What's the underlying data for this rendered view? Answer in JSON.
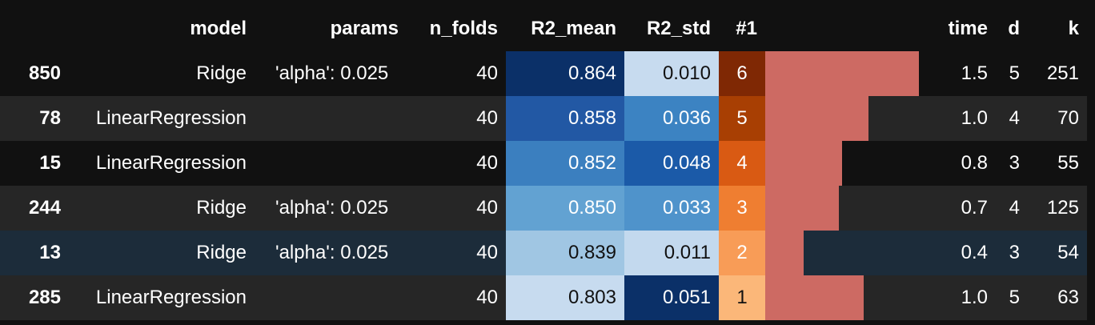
{
  "columns": {
    "index": "",
    "model": "model",
    "params": "params",
    "n_folds": "n_folds",
    "r2_mean": "R2_mean",
    "r2_std": "R2_std",
    "rank": "#1",
    "bar": "",
    "time": "time",
    "d": "d",
    "k": "k"
  },
  "colors": {
    "bar": "#cd6a63",
    "hover_row": "#1c2c3a"
  },
  "rows": [
    {
      "index": "850",
      "model": "Ridge",
      "params": "'alpha': 0.025",
      "n_folds": "40",
      "r2_mean": "0.864",
      "r2_std": "0.010",
      "rank": "6",
      "time": "1.5",
      "d": "5",
      "k": "251",
      "bar_fraction": 1.0,
      "r2_mean_bg": "#0b3068",
      "r2_mean_fg": "#ffffff",
      "r2_std_bg": "#c7dbef",
      "r2_std_fg": "#111111",
      "rank_bg": "#7f2804",
      "rank_fg": "#ffffff"
    },
    {
      "index": "78",
      "model": "LinearRegression",
      "params": "",
      "n_folds": "40",
      "r2_mean": "0.858",
      "r2_std": "0.036",
      "rank": "5",
      "time": "1.0",
      "d": "4",
      "k": "70",
      "bar_fraction": 0.67,
      "r2_mean_bg": "#2258a4",
      "r2_mean_fg": "#ffffff",
      "r2_std_bg": "#3c83c2",
      "r2_std_fg": "#ffffff",
      "rank_bg": "#a83f03",
      "rank_fg": "#ffffff"
    },
    {
      "index": "15",
      "model": "LinearRegression",
      "params": "",
      "n_folds": "40",
      "r2_mean": "0.852",
      "r2_std": "0.048",
      "rank": "4",
      "time": "0.8",
      "d": "3",
      "k": "55",
      "bar_fraction": 0.5,
      "r2_mean_bg": "#3b7fbf",
      "r2_mean_fg": "#ffffff",
      "r2_std_bg": "#1b5aa8",
      "r2_std_fg": "#ffffff",
      "rank_bg": "#d95a13",
      "rank_fg": "#ffffff"
    },
    {
      "index": "244",
      "model": "Ridge",
      "params": "'alpha': 0.025",
      "n_folds": "40",
      "r2_mean": "0.850",
      "r2_std": "0.033",
      "rank": "3",
      "time": "0.7",
      "d": "4",
      "k": "125",
      "bar_fraction": 0.48,
      "r2_mean_bg": "#62a2d2",
      "r2_mean_fg": "#ffffff",
      "r2_std_bg": "#4f93cb",
      "r2_std_fg": "#ffffff",
      "rank_bg": "#ef7e31",
      "rank_fg": "#ffffff"
    },
    {
      "index": "13",
      "model": "Ridge",
      "params": "'alpha': 0.025",
      "n_folds": "40",
      "r2_mean": "0.839",
      "r2_std": "0.011",
      "rank": "2",
      "time": "0.4",
      "d": "3",
      "k": "54",
      "bar_fraction": 0.25,
      "r2_mean_bg": "#a0c6e3",
      "r2_mean_fg": "#111111",
      "r2_std_bg": "#c3d9ee",
      "r2_std_fg": "#111111",
      "rank_bg": "#f89c57",
      "rank_fg": "#ffffff"
    },
    {
      "index": "285",
      "model": "LinearRegression",
      "params": "",
      "n_folds": "40",
      "r2_mean": "0.803",
      "r2_std": "0.051",
      "rank": "1",
      "time": "1.0",
      "d": "5",
      "k": "63",
      "bar_fraction": 0.64,
      "r2_mean_bg": "#c7dbef",
      "r2_mean_fg": "#111111",
      "r2_std_bg": "#0b3068",
      "r2_std_fg": "#ffffff",
      "rank_bg": "#fbb779",
      "rank_fg": "#111111"
    }
  ]
}
